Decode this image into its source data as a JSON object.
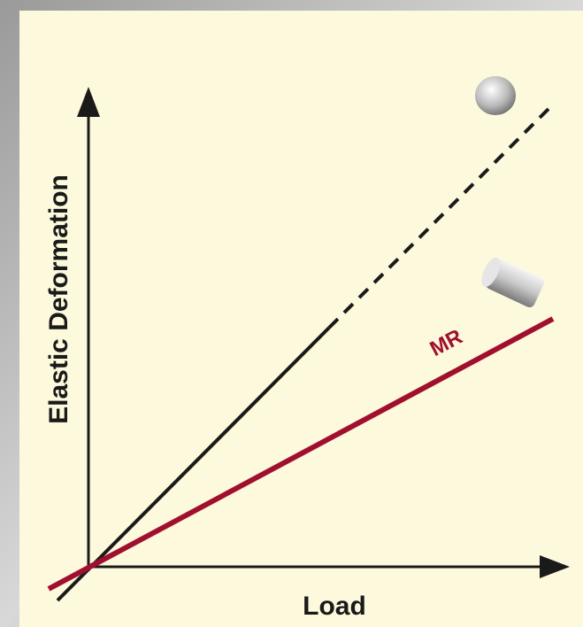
{
  "axes": {
    "y_label": "Elastic Deformation",
    "x_label": "Load"
  },
  "lines": {
    "mr_label": "MR"
  }
}
